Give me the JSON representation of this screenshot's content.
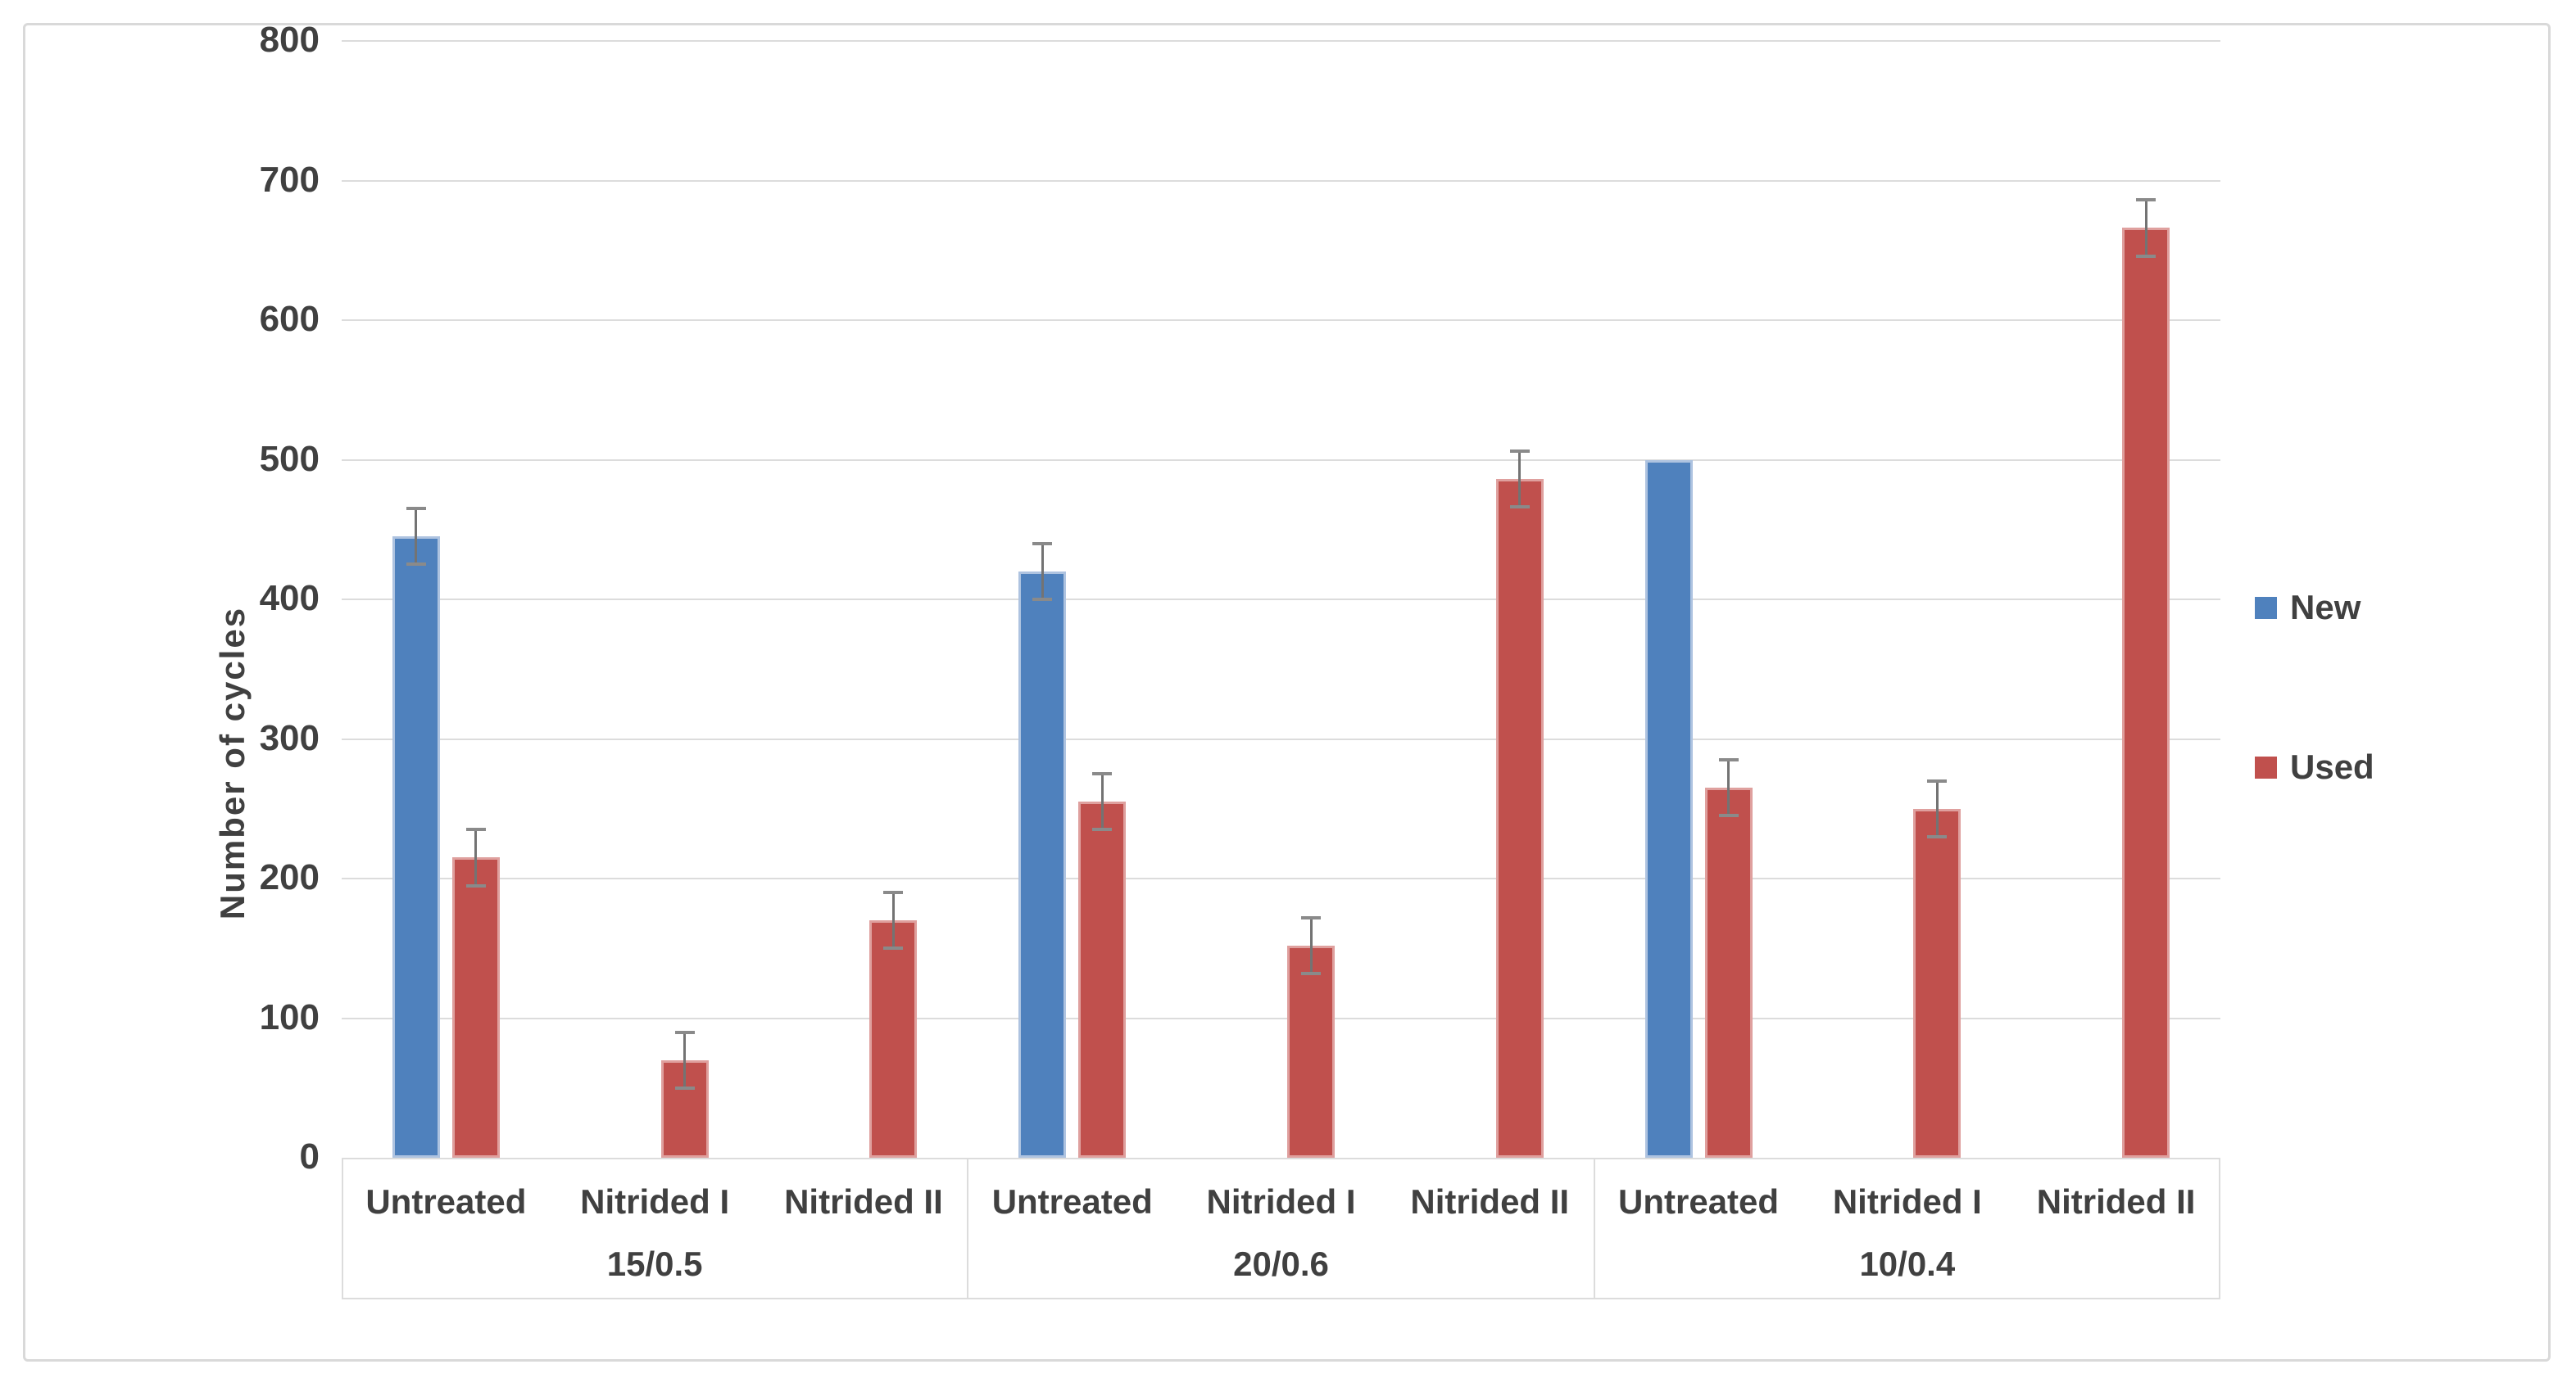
{
  "figure": {
    "background_color": "#FFFFFF",
    "frame_color": "#D9D9D9"
  },
  "chart_data": {
    "type": "bar",
    "title": "",
    "ylabel": "Number of cycles",
    "xlabel": "",
    "ylim": [
      0,
      800
    ],
    "ytick_step": 100,
    "yticks": [
      "0",
      "100",
      "200",
      "300",
      "400",
      "500",
      "600",
      "700",
      "800"
    ],
    "grid": true,
    "gridline_color": "#DCDCDC",
    "text_color": "#404040",
    "error_bar_color": "#737373",
    "legend_position": "right",
    "group_labels": [
      "15/0.5",
      "20/0.6",
      "10/0.4"
    ],
    "categories": [
      "Untreated",
      "Nitrided I",
      "Nitrided II"
    ],
    "series": [
      {
        "name": "New",
        "color": "#4F81BD",
        "edge_color": "#AEC3E0",
        "values": [
          [
            445,
            null,
            null
          ],
          [
            420,
            null,
            null
          ],
          [
            500,
            null,
            null
          ]
        ],
        "errors": [
          [
            20,
            null,
            null
          ],
          [
            20,
            null,
            null
          ],
          [
            0,
            null,
            null
          ]
        ]
      },
      {
        "name": "Used",
        "color": "#C0504D",
        "edge_color": "#DFA09E",
        "values": [
          [
            215,
            70,
            170
          ],
          [
            255,
            152,
            486
          ],
          [
            265,
            250,
            666
          ]
        ],
        "errors": [
          [
            20,
            20,
            20
          ],
          [
            20,
            20,
            20
          ],
          [
            20,
            20,
            20
          ]
        ]
      }
    ]
  }
}
